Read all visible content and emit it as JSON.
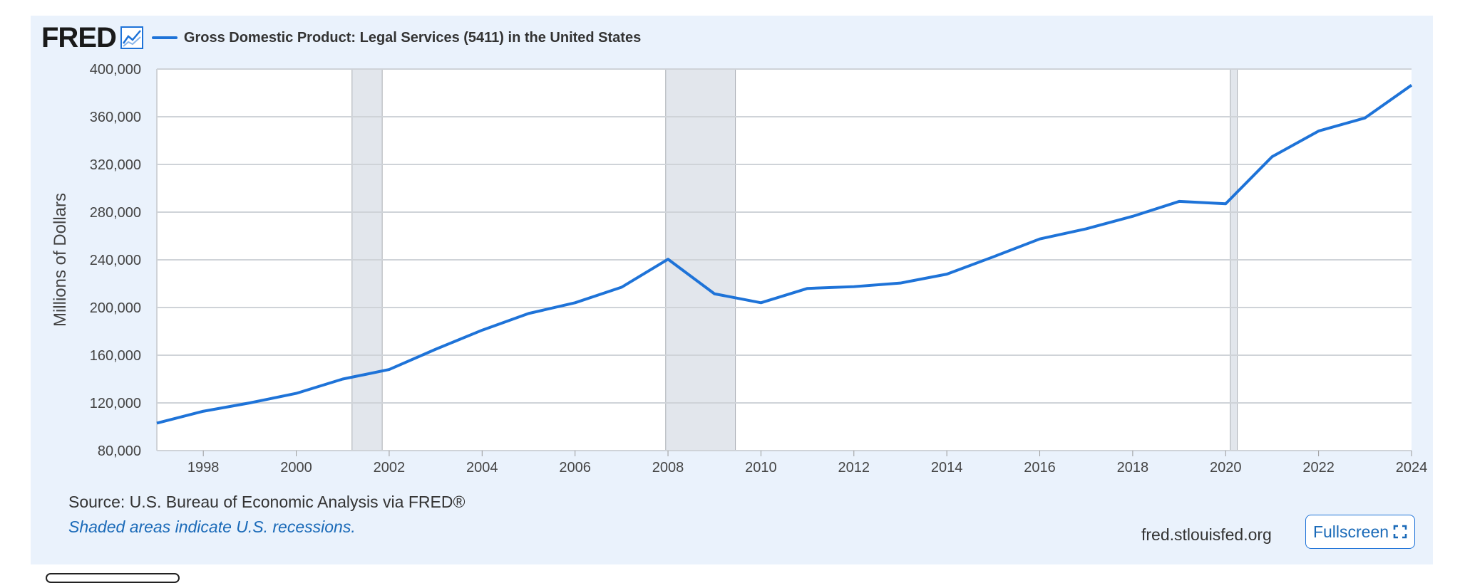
{
  "header": {
    "logo_text": "FRED",
    "legend_label": "Gross Domestic Product: Legal Services (5411) in the United States"
  },
  "footer": {
    "source": "Source: U.S. Bureau of Economic Analysis via FRED®",
    "note": "Shaded areas indicate U.S. recessions.",
    "site": "fred.stlouisfed.org",
    "fullscreen_label": "Fullscreen"
  },
  "colors": {
    "line": "#1e73d8",
    "panel_background": "#eaf2fc",
    "recession_shade": "#e2e6ec"
  },
  "chart_data": {
    "type": "line",
    "title": "",
    "ylabel": "Millions of Dollars",
    "xlabel": "",
    "xlim": [
      1997,
      2024
    ],
    "ylim": [
      80000,
      400000
    ],
    "yticks": [
      80000,
      120000,
      160000,
      200000,
      240000,
      280000,
      320000,
      360000,
      400000
    ],
    "ytick_labels": [
      "80,000",
      "120,000",
      "160,000",
      "200,000",
      "240,000",
      "280,000",
      "320,000",
      "360,000",
      "400,000"
    ],
    "xticks": [
      1998,
      2000,
      2002,
      2004,
      2006,
      2008,
      2010,
      2012,
      2014,
      2016,
      2018,
      2020,
      2022,
      2024
    ],
    "xtick_labels": [
      "1998",
      "2000",
      "2002",
      "2004",
      "2006",
      "2008",
      "2010",
      "2012",
      "2014",
      "2016",
      "2018",
      "2020",
      "2022",
      "2024"
    ],
    "grid": true,
    "legend": "top-left",
    "recessions": [
      [
        2001.2,
        2001.85
      ],
      [
        2007.95,
        2009.45
      ],
      [
        2020.1,
        2020.25
      ]
    ],
    "series": [
      {
        "name": "Gross Domestic Product: Legal Services (5411) in the United States",
        "x": [
          1997,
          1998,
          1999,
          2000,
          2001,
          2002,
          2003,
          2004,
          2005,
          2006,
          2007,
          2008,
          2009,
          2010,
          2011,
          2012,
          2013,
          2014,
          2015,
          2016,
          2017,
          2018,
          2019,
          2020,
          2021,
          2022,
          2023,
          2024
        ],
        "values": [
          103000,
          113000,
          120000,
          128000,
          140000,
          148000,
          165000,
          181000,
          195000,
          204000,
          217000,
          240500,
          211500,
          204000,
          216000,
          217500,
          220500,
          228000,
          242500,
          257500,
          266000,
          276500,
          289000,
          287000,
          326500,
          348000,
          359000,
          386500
        ]
      }
    ]
  }
}
